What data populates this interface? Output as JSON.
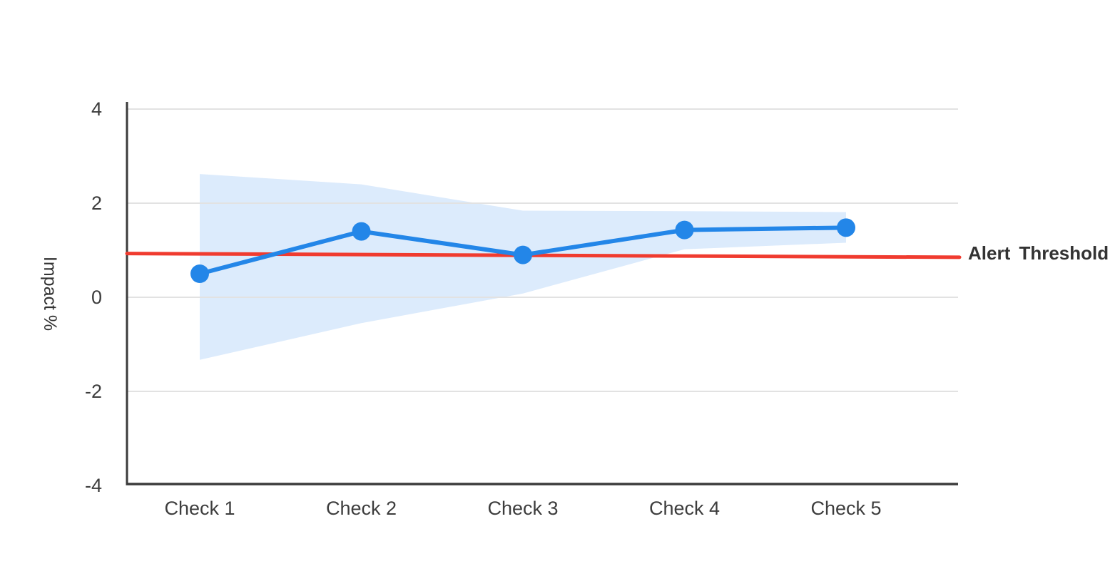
{
  "page": {
    "background": "#ffffff"
  },
  "chart_data": {
    "type": "line",
    "title": "",
    "categories": [
      "Check 1",
      "Check 2",
      "Check 3",
      "Check 4",
      "Check 5"
    ],
    "series": [
      {
        "name": "Impact",
        "values": [
          0.5,
          1.4,
          0.9,
          1.43,
          1.48
        ],
        "color": "#2386E8",
        "marker_radius": 13,
        "line_width": 6
      }
    ],
    "confidence_band": {
      "upper": [
        2.62,
        2.4,
        1.84,
        1.83,
        1.81
      ],
      "lower": [
        -1.33,
        -0.55,
        0.08,
        1.02,
        1.16
      ],
      "color": "#DCEBFC"
    },
    "threshold": {
      "label": "Alert Threshold",
      "start_value": 0.93,
      "end_value": 0.85,
      "color": "#F03B2F",
      "line_width": 5
    },
    "xlabel": "",
    "ylabel": "Impact %",
    "ylim": [
      -4,
      4
    ],
    "yticks": [
      4,
      2,
      0,
      -2,
      -4
    ],
    "ytick_labels": [
      "4",
      "2",
      "0",
      "-2",
      "-4"
    ],
    "grid": true,
    "legend_position": "right-line-annotation"
  },
  "colors": {
    "axis": "#3B3B3B",
    "grid": "#E2E2E2",
    "tick_text": "#3D3D3D",
    "label_text": "#333333"
  }
}
